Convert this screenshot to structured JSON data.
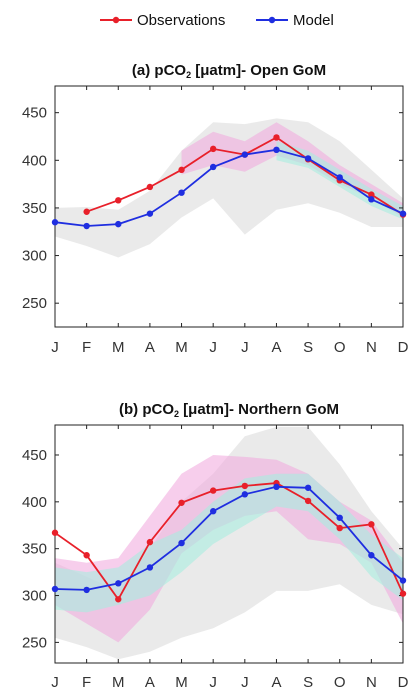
{
  "legend": {
    "items": [
      {
        "label": "Observations",
        "color": "#e8202a"
      },
      {
        "label": "Model",
        "color": "#1f2ee0"
      }
    ]
  },
  "colors": {
    "observations": "#e8202a",
    "model": "#1f2ee0",
    "obs_band": "#f0a6dc",
    "model_band": "#a8ecdf",
    "wide_band": "#dcdcdc"
  },
  "chart_data": [
    {
      "type": "line",
      "title": "(a) pCO₂ [μatm]- Open GoM",
      "title_parts": {
        "label": "(a) pCO",
        "subscript": "2",
        "rest": " [μatm]- Open GoM"
      },
      "categories": [
        "J",
        "F",
        "M",
        "A",
        "M",
        "J",
        "J",
        "A",
        "S",
        "O",
        "N",
        "D"
      ],
      "ylim": [
        225,
        478
      ],
      "yticks": [
        250,
        300,
        350,
        400,
        450
      ],
      "grid": false,
      "legend_position": "top",
      "series": [
        {
          "name": "Observations",
          "values": [
            null,
            346,
            358,
            372,
            390,
            412,
            406,
            424,
            401,
            379,
            364,
            343
          ]
        },
        {
          "name": "Model",
          "values": [
            335,
            331,
            333,
            344,
            366,
            393,
            406,
            411,
            402,
            382,
            359,
            344
          ]
        }
      ],
      "bands": [
        {
          "kind": "wide",
          "upper": [
            350,
            351,
            348,
            368,
            410,
            440,
            438,
            444,
            440,
            420,
            390,
            360
          ],
          "lower": [
            320,
            310,
            298,
            312,
            340,
            360,
            322,
            348,
            355,
            345,
            330,
            330
          ]
        },
        {
          "kind": "observations",
          "upper": [
            null,
            null,
            null,
            null,
            410,
            430,
            420,
            440,
            420,
            395,
            375,
            355
          ],
          "lower": [
            null,
            null,
            null,
            null,
            385,
            395,
            388,
            405,
            395,
            375,
            360,
            340
          ]
        },
        {
          "kind": "model",
          "upper": [
            null,
            null,
            null,
            null,
            null,
            null,
            null,
            420,
            410,
            390,
            370,
            352
          ],
          "lower": [
            null,
            null,
            null,
            null,
            null,
            null,
            null,
            400,
            392,
            372,
            352,
            338
          ]
        }
      ]
    },
    {
      "type": "line",
      "title": "(b) pCO₂ [μatm]- Northern GoM",
      "title_parts": {
        "label": "(b) pCO",
        "subscript": "2",
        "rest": " [μatm]- Northern GoM"
      },
      "categories": [
        "J",
        "F",
        "M",
        "A",
        "M",
        "J",
        "J",
        "A",
        "S",
        "O",
        "N",
        "D"
      ],
      "ylim": [
        228,
        482
      ],
      "yticks": [
        250,
        300,
        350,
        400,
        450
      ],
      "grid": false,
      "legend_position": "top",
      "series": [
        {
          "name": "Observations",
          "values": [
            367,
            343,
            296,
            357,
            399,
            412,
            417,
            420,
            401,
            372,
            376,
            302
          ]
        },
        {
          "name": "Model",
          "values": [
            307,
            306,
            313,
            330,
            356,
            390,
            408,
            416,
            415,
            383,
            343,
            316
          ]
        }
      ],
      "bands": [
        {
          "kind": "wide",
          "upper": [
            335,
            320,
            305,
            350,
            400,
            430,
            470,
            480,
            480,
            440,
            390,
            350
          ],
          "lower": [
            255,
            245,
            232,
            240,
            255,
            265,
            282,
            305,
            305,
            312,
            290,
            280
          ]
        },
        {
          "kind": "observations",
          "upper": [
            340,
            335,
            340,
            385,
            430,
            450,
            448,
            445,
            430,
            400,
            380,
            335
          ],
          "lower": [
            290,
            270,
            250,
            285,
            345,
            370,
            385,
            390,
            360,
            355,
            335,
            270
          ]
        },
        {
          "kind": "model",
          "upper": [
            330,
            325,
            330,
            355,
            370,
            400,
            425,
            430,
            430,
            400,
            365,
            340
          ],
          "lower": [
            285,
            282,
            290,
            300,
            325,
            355,
            375,
            395,
            390,
            360,
            320,
            295
          ]
        }
      ]
    }
  ]
}
